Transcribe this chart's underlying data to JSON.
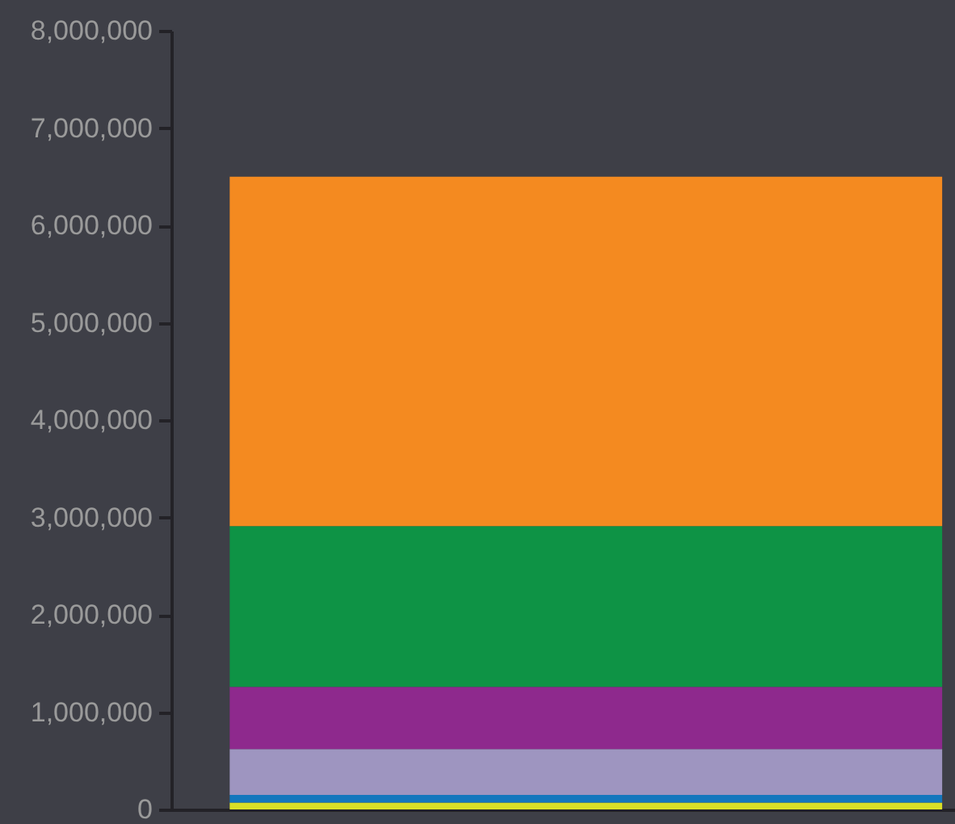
{
  "chart_data": {
    "type": "bar",
    "stacked": true,
    "categories": [
      null
    ],
    "series": [
      {
        "color": "#d9df26",
        "values": [
          70000
        ]
      },
      {
        "color": "#1477bd",
        "values": [
          80000
        ]
      },
      {
        "color": "#9e95c0",
        "values": [
          470000
        ]
      },
      {
        "color": "#8e298d",
        "values": [
          640000
        ]
      },
      {
        "color": "#0e9345",
        "values": [
          1650000
        ]
      },
      {
        "color": "#f48a20",
        "values": [
          3590000
        ]
      }
    ],
    "ylim": [
      0,
      8000000
    ],
    "yticks": [
      0,
      {
        "value": 1000000,
        "label": "1,000,000"
      },
      {
        "value": 2000000,
        "label": "2,000,000"
      },
      {
        "value": 3000000,
        "label": "3,000,000"
      },
      {
        "value": 4000000,
        "label": "4,000,000"
      },
      {
        "value": 5000000,
        "label": "5,000,000"
      },
      {
        "value": 6000000,
        "label": "6,000,000"
      },
      {
        "value": 7000000,
        "label": "7,000,000"
      },
      {
        "value": 8000000,
        "label": "8,000,000"
      }
    ],
    "grid": false,
    "legend": false,
    "tick_labels": "y"
  }
}
